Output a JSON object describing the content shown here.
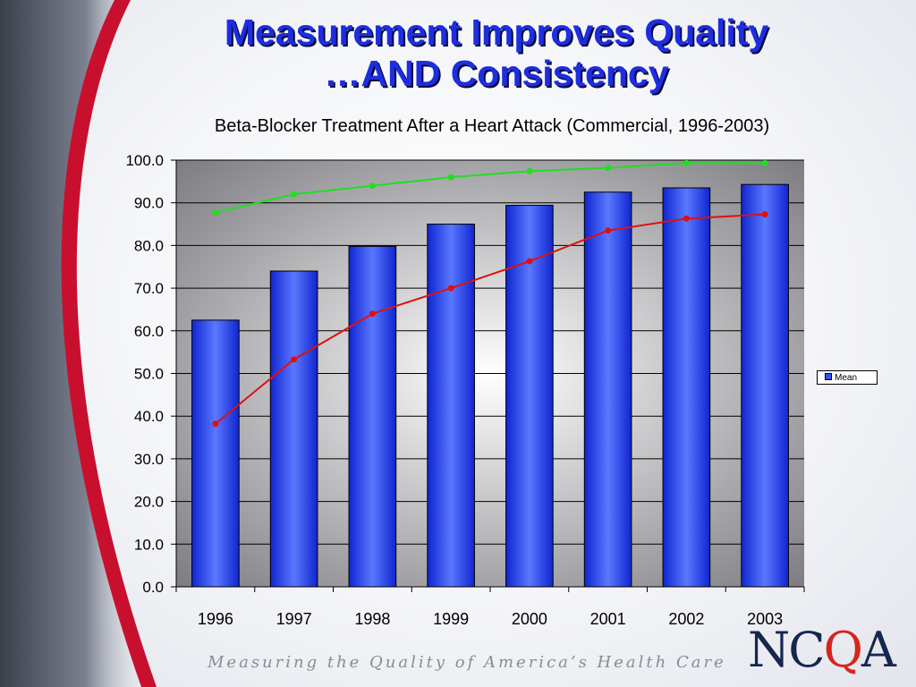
{
  "slide": {
    "title_line1": "Measurement Improves Quality",
    "title_line2": "…AND Consistency",
    "footer": "Measuring the Quality of America’s Health Care",
    "logo_n": "NC",
    "logo_q": "Q",
    "logo_a": "A"
  },
  "chart_data": {
    "type": "bar",
    "title": "Beta-Blocker Treatment After a Heart Attack (Commercial, 1996-2003)",
    "categories": [
      "1996",
      "1997",
      "1998",
      "1999",
      "2000",
      "2001",
      "2002",
      "2003"
    ],
    "series": [
      {
        "name": "Mean",
        "type": "bar",
        "color": "#2f4cf5",
        "values": [
          62.5,
          74.0,
          79.8,
          85.0,
          89.4,
          92.5,
          93.5,
          94.3
        ]
      },
      {
        "type": "line",
        "color": "#22dd22",
        "values": [
          87.7,
          92.0,
          94.0,
          96.0,
          97.4,
          98.2,
          99.3,
          99.3
        ]
      },
      {
        "type": "line",
        "color": "#dd1111",
        "values": [
          38.2,
          53.3,
          64.0,
          70.0,
          76.3,
          83.5,
          86.3,
          87.3
        ]
      }
    ],
    "ylim": [
      0,
      100
    ],
    "yticks": [
      "0.0",
      "10.0",
      "20.0",
      "30.0",
      "40.0",
      "50.0",
      "60.0",
      "70.0",
      "80.0",
      "90.0",
      "100.0"
    ],
    "legend": "right",
    "grid": true
  }
}
